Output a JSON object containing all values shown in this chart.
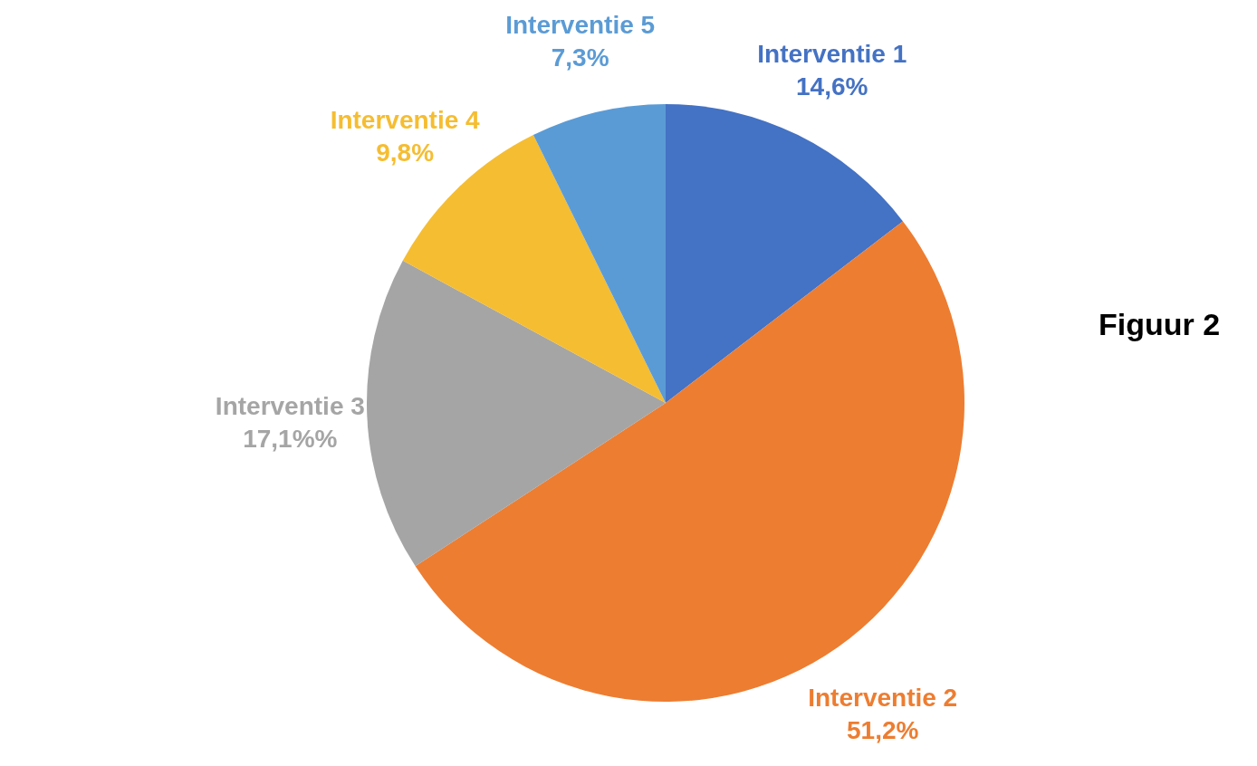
{
  "chart_data": {
    "type": "pie",
    "categories": [
      "Interventie 1",
      "Interventie 2",
      "Interventie 3",
      "Interventie 4",
      "Interventie 5"
    ],
    "values": [
      14.6,
      51.2,
      17.1,
      9.8,
      7.3
    ],
    "value_labels": [
      "14,6%",
      "51,2%",
      "17,1%%",
      "9,8%",
      "7,3%"
    ],
    "colors": [
      "#4472c4",
      "#ed7d31",
      "#a5a5a5",
      "#f5bd31",
      "#5b9bd5"
    ],
    "annotations": [
      "Figuur 2"
    ]
  }
}
